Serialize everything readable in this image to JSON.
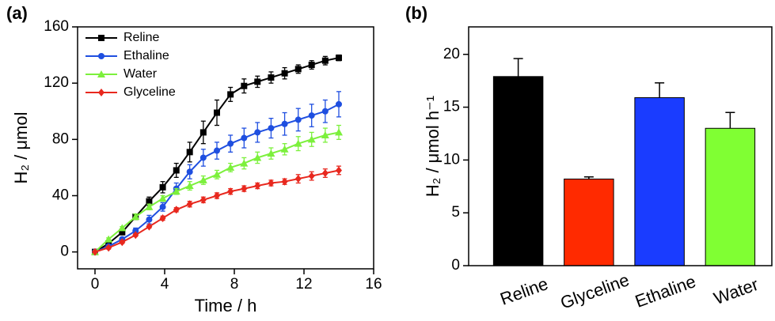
{
  "chart_data": [
    {
      "type": "line",
      "panel_label": "(a)",
      "x_label": "Time / h",
      "y_label": "H₂ / μmol",
      "x": [
        0,
        0.78,
        1.56,
        2.33,
        3.11,
        3.89,
        4.67,
        5.44,
        6.22,
        7,
        7.78,
        8.56,
        9.33,
        10.11,
        10.89,
        11.67,
        12.44,
        13.22,
        14
      ],
      "series": [
        {
          "name": "Reline",
          "color": "#000000",
          "marker": "square",
          "values": [
            0,
            6,
            14,
            25,
            36,
            46,
            58,
            71,
            85,
            99,
            112,
            118,
            121,
            124,
            127,
            130,
            133,
            136,
            138
          ],
          "errors": [
            1,
            1,
            1.5,
            2,
            3,
            4,
            5,
            7,
            8,
            9,
            5,
            5,
            4,
            4,
            4,
            3,
            3,
            3,
            2
          ]
        },
        {
          "name": "Ethaline",
          "color": "#1f4fe0",
          "marker": "circle",
          "values": [
            0,
            4,
            9,
            15,
            23,
            32,
            45,
            57,
            67,
            72,
            77,
            81,
            85,
            88,
            91,
            94,
            97,
            100,
            105
          ],
          "errors": [
            1,
            1,
            1,
            2,
            3,
            3,
            4,
            5,
            6,
            6,
            6,
            7,
            7,
            7,
            8,
            8,
            8,
            8,
            9
          ]
        },
        {
          "name": "Water",
          "color": "#7cf03c",
          "marker": "triangle",
          "values": [
            0,
            9,
            17,
            25,
            32,
            38,
            43,
            47,
            51,
            55,
            60,
            63,
            67,
            70,
            73,
            77,
            80,
            83,
            85
          ],
          "errors": [
            1,
            1,
            1,
            2,
            2,
            2,
            2,
            3,
            3,
            3,
            3,
            4,
            4,
            4,
            4,
            5,
            5,
            5,
            5
          ]
        },
        {
          "name": "Glyceline",
          "color": "#e8281e",
          "marker": "diamond",
          "values": [
            0,
            3,
            7,
            12,
            18,
            24,
            30,
            34,
            37,
            40,
            43,
            45,
            47,
            49,
            50,
            52,
            54,
            56,
            58
          ],
          "errors": [
            0.5,
            1,
            1,
            1,
            1,
            1.5,
            1.5,
            2,
            2,
            2,
            2,
            2,
            2,
            2,
            2,
            3,
            3,
            3,
            3
          ]
        }
      ],
      "xlim": [
        -1,
        16
      ],
      "xticks": [
        0,
        4,
        8,
        12,
        16
      ],
      "ylim": [
        -12,
        160
      ],
      "yticks": [
        0,
        40,
        80,
        120,
        160
      ],
      "legend": "upper left"
    },
    {
      "type": "bar",
      "panel_label": "(b)",
      "y_label": "H₂ / μmol h⁻¹",
      "categories": [
        "Reline",
        "Glyceline",
        "Ethaline",
        "Water"
      ],
      "values": [
        17.9,
        8.2,
        15.9,
        13.0
      ],
      "errors": [
        1.7,
        0.2,
        1.4,
        1.5
      ],
      "colors": [
        "#000000",
        "#ff2a00",
        "#1a3cff",
        "#80ff33"
      ],
      "ylim": [
        0,
        22.6
      ],
      "yticks": [
        0,
        5,
        10,
        15,
        20
      ]
    }
  ]
}
